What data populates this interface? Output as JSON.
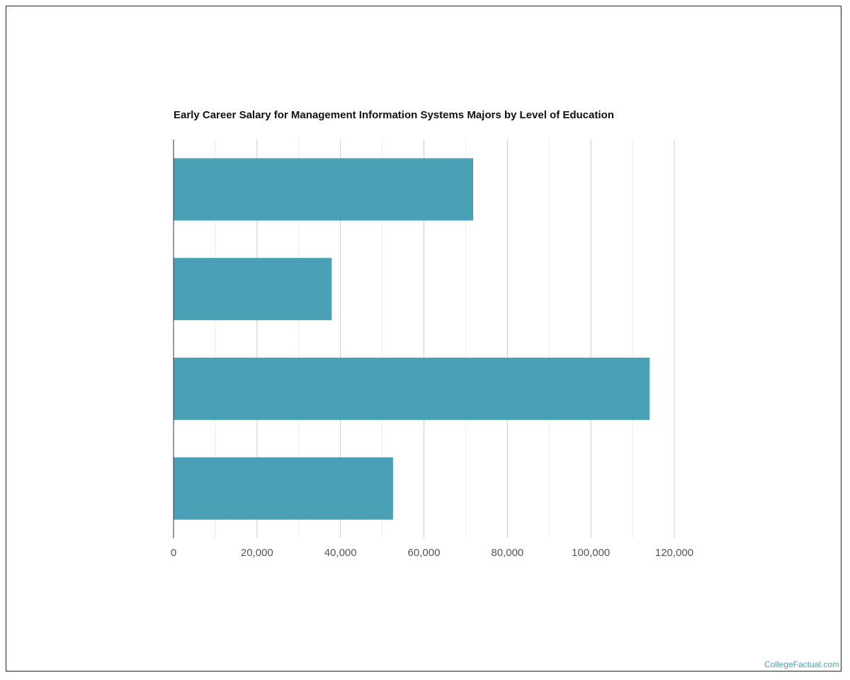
{
  "chart_data": {
    "type": "bar",
    "orientation": "horizontal",
    "title": "Early Career Salary for Management Information Systems Majors by Level of Education",
    "categories": [
      "",
      "",
      "",
      ""
    ],
    "values": [
      71800,
      37900,
      114100,
      52600
    ],
    "xlim": [
      0,
      125000
    ],
    "x_ticks": [
      0,
      20000,
      40000,
      60000,
      80000,
      100000,
      120000
    ],
    "x_tick_labels": [
      "0",
      "20,000",
      "40,000",
      "60,000",
      "80,000",
      "100,000",
      "120,000"
    ],
    "minor_gridlines": [
      10000,
      30000,
      50000,
      70000,
      90000,
      110000
    ],
    "grid": true,
    "bar_color": "#4aa0b5"
  },
  "footer": {
    "watermark": "CollegeFactual.com"
  }
}
